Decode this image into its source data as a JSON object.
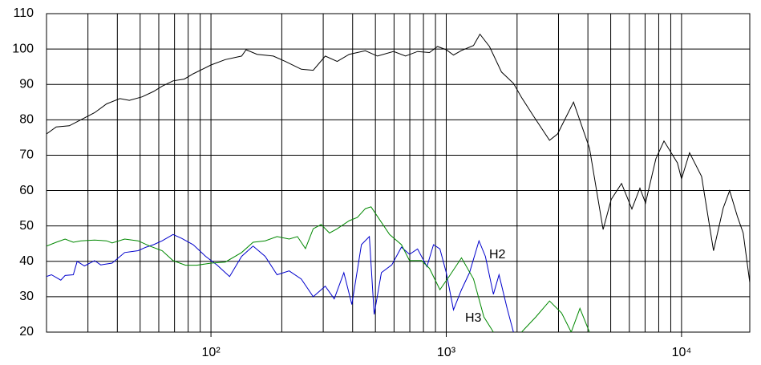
{
  "chart_data": {
    "type": "line",
    "x_scale": "log",
    "xlim": [
      20,
      19500
    ],
    "ylim": [
      20,
      110
    ],
    "yticks": [
      20,
      30,
      40,
      50,
      60,
      70,
      80,
      90,
      100,
      110
    ],
    "xticks": [
      {
        "value": 100,
        "label": "10²"
      },
      {
        "value": 1000,
        "label": "10³"
      },
      {
        "value": 10000,
        "label": "10⁴"
      }
    ],
    "x_minor_grid": [
      30,
      40,
      50,
      60,
      70,
      80,
      90,
      200,
      300,
      400,
      500,
      600,
      700,
      800,
      900,
      2000,
      3000,
      4000,
      5000,
      6000,
      7000,
      8000,
      9000
    ],
    "grid": true,
    "series": [
      {
        "color": "#000000",
        "x": [
          20,
          22,
          25,
          28,
          32,
          36,
          41,
          45,
          51,
          57,
          62,
          69,
          77,
          84,
          100,
          115,
          135,
          141,
          157,
          184,
          207,
          242,
          272,
          306,
          344,
          387,
          453,
          510,
          597,
          671,
          755,
          849,
          918,
          1000,
          1073,
          1161,
          1306,
          1390,
          1527,
          1717,
          1931,
          2089,
          2350,
          2748,
          2972,
          3475,
          4062,
          4642,
          5023,
          5561,
          6150,
          6652,
          7029,
          7781,
          8418,
          9610,
          10000,
          10815,
          12163,
          13680,
          15030,
          16009,
          17314,
          18280,
          19500
        ],
        "values": [
          76,
          78,
          78.3,
          80,
          82,
          84.5,
          86,
          85.5,
          86.5,
          88,
          89.5,
          91,
          91.5,
          93,
          95.5,
          97,
          98,
          99.8,
          98.5,
          98,
          96.5,
          94.3,
          94,
          98,
          96.5,
          98.5,
          99.5,
          98,
          99.3,
          98,
          99.3,
          99,
          100.7,
          99.8,
          98.3,
          99.6,
          101,
          104.2,
          100.7,
          93.5,
          90.3,
          86.3,
          81,
          74.2,
          76,
          85,
          72,
          49,
          57.5,
          62,
          54.8,
          60.7,
          56.5,
          69,
          74,
          67.8,
          63.3,
          70.7,
          64,
          43,
          55,
          60,
          52.5,
          48,
          34
        ]
      },
      {
        "name": "H2",
        "color": "#0000cc",
        "x": [
          20,
          21,
          23,
          24,
          26,
          27,
          29,
          32,
          34,
          38,
          43,
          49,
          53,
          57,
          62,
          69,
          75,
          84,
          95,
          106,
          120,
          135,
          151,
          170,
          191,
          215,
          242,
          272,
          306,
          334,
          367,
          397,
          436,
          471,
          494,
          530,
          587,
          645,
          698,
          755,
          828,
          883,
          940,
          1000,
          1073,
          1161,
          1256,
          1378,
          1467,
          1587,
          1676,
          1814,
          1931
        ],
        "values": [
          35.7,
          36.2,
          34.7,
          36,
          36.2,
          40,
          38.7,
          40.2,
          39,
          39.5,
          42.5,
          43,
          44,
          44.7,
          45.8,
          47.6,
          46.5,
          44.7,
          41.4,
          39,
          35.7,
          41.4,
          44.3,
          41.4,
          36.2,
          37.3,
          35,
          30,
          33,
          29.4,
          36.8,
          27.8,
          44.7,
          47,
          25,
          36.8,
          39,
          44,
          42,
          43.5,
          38.5,
          44.7,
          43.5,
          36.8,
          26.3,
          32,
          36.8,
          45.8,
          41.4,
          30.7,
          36.2,
          26.7,
          20
        ]
      },
      {
        "name": "H3",
        "color": "#008800",
        "x": [
          20,
          22,
          24,
          26,
          28,
          32,
          36,
          38,
          43,
          49,
          55,
          62,
          69,
          78,
          87,
          100,
          115,
          135,
          151,
          170,
          191,
          215,
          233,
          252,
          272,
          294,
          319,
          344,
          387,
          419,
          453,
          479,
          510,
          574,
          645,
          698,
          785,
          849,
          940,
          1033,
          1161,
          1306,
          1445,
          1587,
          1800,
          2089,
          2404,
          2748,
          3090,
          3396,
          3700,
          4062
        ],
        "values": [
          44.3,
          45.4,
          46.3,
          45.4,
          45.8,
          46,
          45.8,
          45.2,
          46.3,
          45.8,
          44.3,
          43,
          40.2,
          38.9,
          38.9,
          39.5,
          39.8,
          42.5,
          45.4,
          45.8,
          47,
          46.3,
          47,
          43.6,
          49.2,
          50.4,
          48,
          49.2,
          51.5,
          52.4,
          54.9,
          55.4,
          52.7,
          47.6,
          44.7,
          40.2,
          40.2,
          38,
          32,
          35.9,
          41,
          35,
          24.3,
          20,
          null,
          20,
          24.3,
          28.8,
          25.4,
          20,
          26.7,
          20
        ]
      }
    ]
  }
}
